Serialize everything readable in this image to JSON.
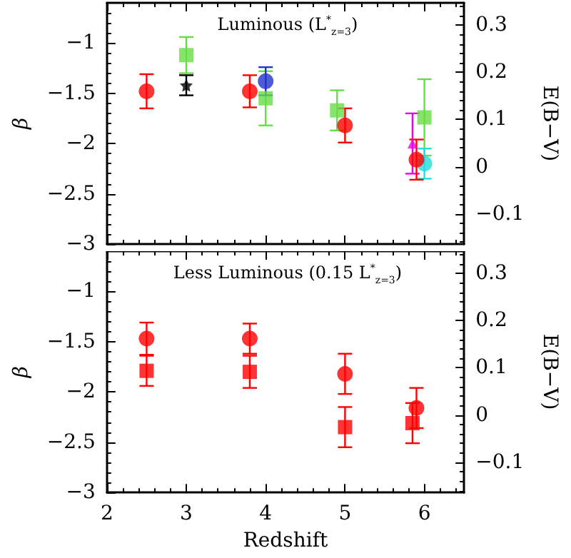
{
  "chart_data": [
    {
      "type": "scatter",
      "ylabel": "β",
      "y2label": "E(B−V)",
      "annotations": [
        "Luminous (L$^{*}$$_{z=3}$)"
      ],
      "xlim": [
        2,
        6.5
      ],
      "xticks": [
        2,
        3,
        4,
        5,
        6
      ],
      "ylim": [
        -3,
        -0.6
      ],
      "yticks": [
        -3,
        -2.5,
        -2,
        -1.5,
        -1
      ],
      "y2lim": [
        -0.164,
        0.347
      ],
      "y2ticks": [
        -0.1,
        0,
        0.1,
        0.2,
        0.3
      ],
      "tick_labels": "y",
      "grid": false,
      "series": [
        {
          "color": "#66dd44",
          "marker": "square",
          "x": [
            3.0,
            4.0,
            4.9,
            6.0
          ],
          "values": [
            -1.12,
            -1.55,
            -1.67,
            -1.74
          ],
          "errors": [
            0.18,
            0.27,
            0.2,
            0.38
          ]
        },
        {
          "color": "#000000",
          "marker": "star",
          "x": [
            3.0
          ],
          "values": [
            -1.42
          ],
          "errors": [
            0.1
          ]
        },
        {
          "color": "#2233cc",
          "marker": "circle",
          "x": [
            4.0
          ],
          "values": [
            -1.38
          ],
          "errors": [
            0.14
          ]
        },
        {
          "color": "#ee00ee",
          "marker": "triangle",
          "x": [
            5.85
          ],
          "values": [
            -2.0
          ],
          "errors": [
            0.3
          ]
        },
        {
          "color": "#22dddd",
          "marker": "circle",
          "x": [
            6.0
          ],
          "values": [
            -2.2
          ],
          "errors": [
            0.15
          ]
        },
        {
          "color": "#ff0000",
          "marker": "circle",
          "x": [
            2.5,
            3.8,
            5.0,
            5.9
          ],
          "values": [
            -1.48,
            -1.48,
            -1.82,
            -2.16
          ],
          "errors": [
            0.17,
            0.16,
            0.17,
            0.2
          ]
        }
      ]
    },
    {
      "type": "scatter",
      "xlabel": "Redshift",
      "ylabel": "β",
      "y2label": "E(B−V)",
      "annotations": [
        "Less Luminous (0.15 L$^{*}$$_{z=3}$)"
      ],
      "xlim": [
        2,
        6.5
      ],
      "xticks": [
        2,
        3,
        4,
        5,
        6
      ],
      "ylim": [
        -3,
        -0.6
      ],
      "yticks": [
        -3,
        -2.5,
        -2,
        -1.5,
        -1
      ],
      "y2lim": [
        -0.164,
        0.347
      ],
      "y2ticks": [
        -0.1,
        0,
        0.1,
        0.2,
        0.3
      ],
      "grid": false,
      "series": [
        {
          "color": "#ff0000",
          "marker": "circle",
          "x": [
            2.5,
            3.8,
            5.0,
            5.9
          ],
          "values": [
            -1.47,
            -1.47,
            -1.82,
            -2.16
          ],
          "errors": [
            0.16,
            0.15,
            0.2,
            0.2
          ]
        },
        {
          "color": "#ff0000",
          "marker": "square",
          "x": [
            2.5,
            3.8,
            5.0,
            5.85
          ],
          "values": [
            -1.79,
            -1.8,
            -2.35,
            -2.31
          ],
          "errors": [
            0.15,
            0.16,
            0.2,
            0.2
          ]
        }
      ]
    }
  ]
}
